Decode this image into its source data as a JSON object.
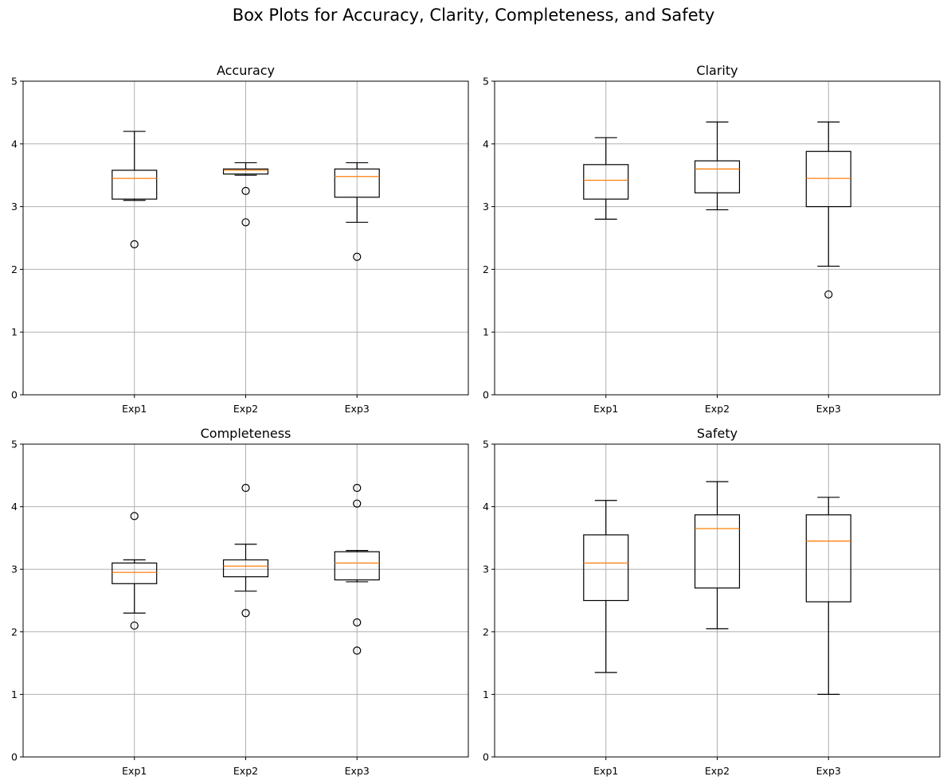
{
  "chart_data": {
    "type": "box",
    "suptitle": "Box Plots for Accuracy, Clarity, Completeness, and Safety",
    "categories": [
      "Exp1",
      "Exp2",
      "Exp3"
    ],
    "ylim": [
      0,
      5
    ],
    "yticks": [
      0,
      1,
      2,
      3,
      4,
      5
    ],
    "grid": true,
    "panels": [
      {
        "title": "Accuracy",
        "boxes": [
          {
            "category": "Exp1",
            "whisker_low": 3.1,
            "q1": 3.12,
            "median": 3.45,
            "q3": 3.58,
            "whisker_high": 4.2,
            "outliers": [
              2.4
            ]
          },
          {
            "category": "Exp2",
            "whisker_low": 3.5,
            "q1": 3.52,
            "median": 3.58,
            "q3": 3.6,
            "whisker_high": 3.7,
            "outliers": [
              3.25,
              2.75
            ]
          },
          {
            "category": "Exp3",
            "whisker_low": 2.75,
            "q1": 3.15,
            "median": 3.48,
            "q3": 3.6,
            "whisker_high": 3.7,
            "outliers": [
              2.2
            ]
          }
        ]
      },
      {
        "title": "Clarity",
        "boxes": [
          {
            "category": "Exp1",
            "whisker_low": 2.8,
            "q1": 3.12,
            "median": 3.42,
            "q3": 3.67,
            "whisker_high": 4.1,
            "outliers": []
          },
          {
            "category": "Exp2",
            "whisker_low": 2.95,
            "q1": 3.22,
            "median": 3.6,
            "q3": 3.73,
            "whisker_high": 4.35,
            "outliers": []
          },
          {
            "category": "Exp3",
            "whisker_low": 2.05,
            "q1": 3.0,
            "median": 3.45,
            "q3": 3.88,
            "whisker_high": 4.35,
            "outliers": [
              1.6
            ]
          }
        ]
      },
      {
        "title": "Completeness",
        "boxes": [
          {
            "category": "Exp1",
            "whisker_low": 2.3,
            "q1": 2.77,
            "median": 2.95,
            "q3": 3.1,
            "whisker_high": 3.15,
            "outliers": [
              3.85,
              2.1
            ]
          },
          {
            "category": "Exp2",
            "whisker_low": 2.65,
            "q1": 2.88,
            "median": 3.05,
            "q3": 3.15,
            "whisker_high": 3.4,
            "outliers": [
              4.3,
              2.3
            ]
          },
          {
            "category": "Exp3",
            "whisker_low": 2.8,
            "q1": 2.83,
            "median": 3.1,
            "q3": 3.28,
            "whisker_high": 3.3,
            "outliers": [
              4.3,
              4.05,
              2.15,
              1.7
            ]
          }
        ]
      },
      {
        "title": "Safety",
        "boxes": [
          {
            "category": "Exp1",
            "whisker_low": 1.35,
            "q1": 2.5,
            "median": 3.1,
            "q3": 3.55,
            "whisker_high": 4.1,
            "outliers": []
          },
          {
            "category": "Exp2",
            "whisker_low": 2.05,
            "q1": 2.7,
            "median": 3.65,
            "q3": 3.87,
            "whisker_high": 4.4,
            "outliers": []
          },
          {
            "category": "Exp3",
            "whisker_low": 1.0,
            "q1": 2.48,
            "median": 3.45,
            "q3": 3.87,
            "whisker_high": 4.15,
            "outliers": []
          }
        ]
      }
    ]
  }
}
